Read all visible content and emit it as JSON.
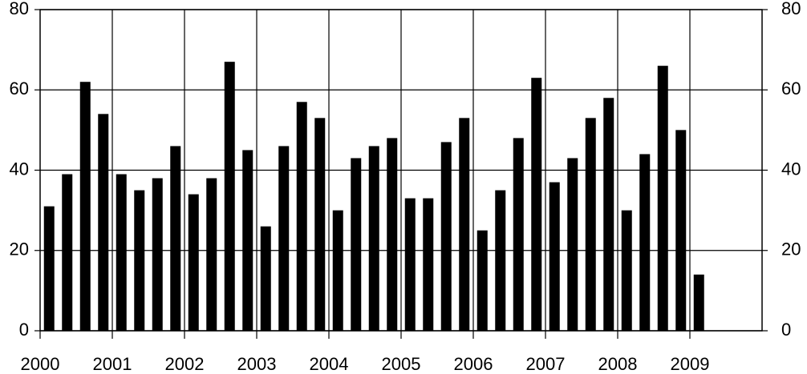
{
  "chart_data": {
    "type": "bar",
    "categories": [
      "2000",
      null,
      null,
      null,
      "2001",
      null,
      null,
      null,
      "2002",
      null,
      null,
      null,
      "2003",
      null,
      null,
      null,
      "2004",
      null,
      null,
      null,
      "2005",
      null,
      null,
      null,
      "2006",
      null,
      null,
      null,
      "2007",
      null,
      null,
      null,
      "2008",
      null,
      null,
      null,
      "2009"
    ],
    "values": [
      31,
      39,
      62,
      54,
      39,
      35,
      38,
      46,
      34,
      38,
      67,
      45,
      26,
      46,
      57,
      53,
      30,
      43,
      46,
      48,
      33,
      33,
      47,
      53,
      25,
      35,
      48,
      63,
      37,
      43,
      53,
      58,
      30,
      44,
      66,
      50,
      14
    ],
    "color": "#000000",
    "ylim": [
      0,
      80
    ],
    "yticks": [
      0,
      20,
      40,
      60,
      80
    ],
    "y2lim": [
      0,
      80
    ],
    "y2ticks": [
      0,
      20,
      40,
      60,
      80
    ],
    "grid": true
  }
}
